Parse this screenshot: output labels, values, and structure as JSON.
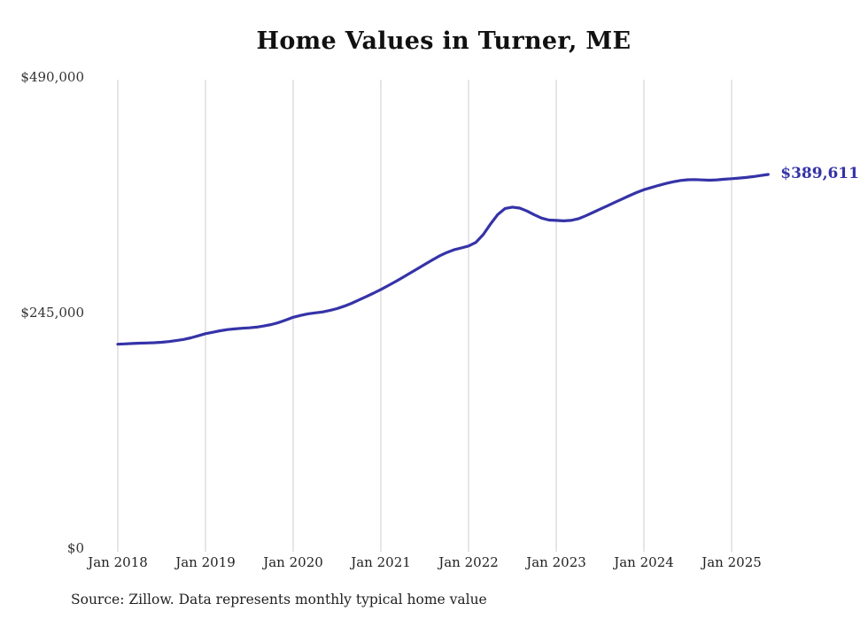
{
  "chart_data": {
    "type": "line",
    "title": "Home Values in Turner, ME",
    "source": "Source: Zillow. Data represents monthly typical home value",
    "end_label": "$389,611",
    "latest_value": 389611,
    "line_color": "#3533a8",
    "grid_color": "#cccccc",
    "text_color": "#222222",
    "ylim": [
      0,
      490000
    ],
    "grid": "vertical-only",
    "legend": "none",
    "x_tick_labels": [
      "Jan 2018",
      "Jan 2019",
      "Jan 2020",
      "Jan 2021",
      "Jan 2022",
      "Jan 2023",
      "Jan 2024",
      "Jan 2025"
    ],
    "y_ticks": [
      {
        "value": 0,
        "label": "$0"
      },
      {
        "value": 245000,
        "label": "$245,000"
      },
      {
        "value": 490000,
        "label": "$490,000"
      }
    ],
    "series": [
      {
        "name": "Monthly typical home value",
        "start": "2018-01",
        "frequency": "monthly",
        "values": [
          213000,
          213400,
          213800,
          214100,
          214300,
          214600,
          215100,
          215800,
          216800,
          218000,
          219700,
          221800,
          224000,
          225500,
          227000,
          228200,
          229000,
          229600,
          230100,
          230800,
          232000,
          233500,
          235500,
          238200,
          241000,
          243000,
          244600,
          245600,
          246600,
          248100,
          250100,
          252600,
          255600,
          259100,
          262600,
          266200,
          270000,
          274000,
          278200,
          282600,
          287000,
          291500,
          296000,
          300500,
          304800,
          308400,
          311200,
          313200,
          315200,
          319000,
          327000,
          338000,
          348000,
          354200,
          355600,
          354600,
          351600,
          347600,
          344200,
          342200,
          341800,
          341300,
          341800,
          343500,
          346500,
          350000,
          353500,
          357000,
          360500,
          364000,
          367500,
          370800,
          373800,
          376000,
          378200,
          380200,
          382000,
          383300,
          384100,
          384300,
          383900,
          383600,
          384000,
          384600,
          385200,
          385800,
          386500,
          387400,
          388500,
          389611
        ]
      }
    ]
  }
}
